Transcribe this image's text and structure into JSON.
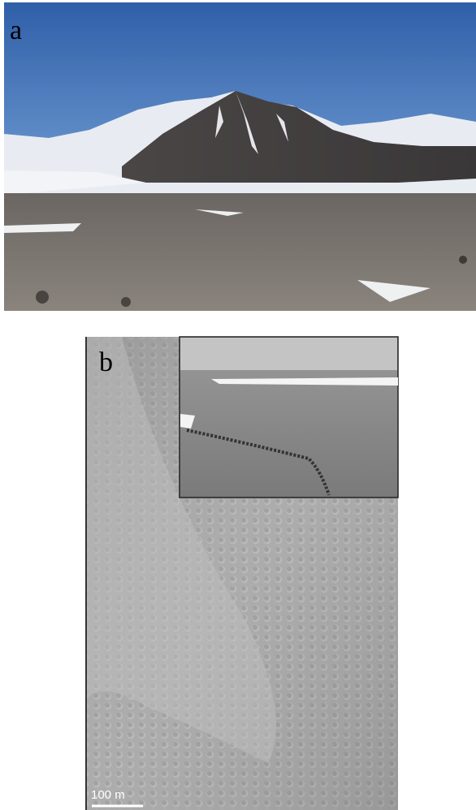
{
  "panels": [
    {
      "label": "a"
    },
    {
      "label": "b",
      "scale_bar": "100 m"
    }
  ]
}
